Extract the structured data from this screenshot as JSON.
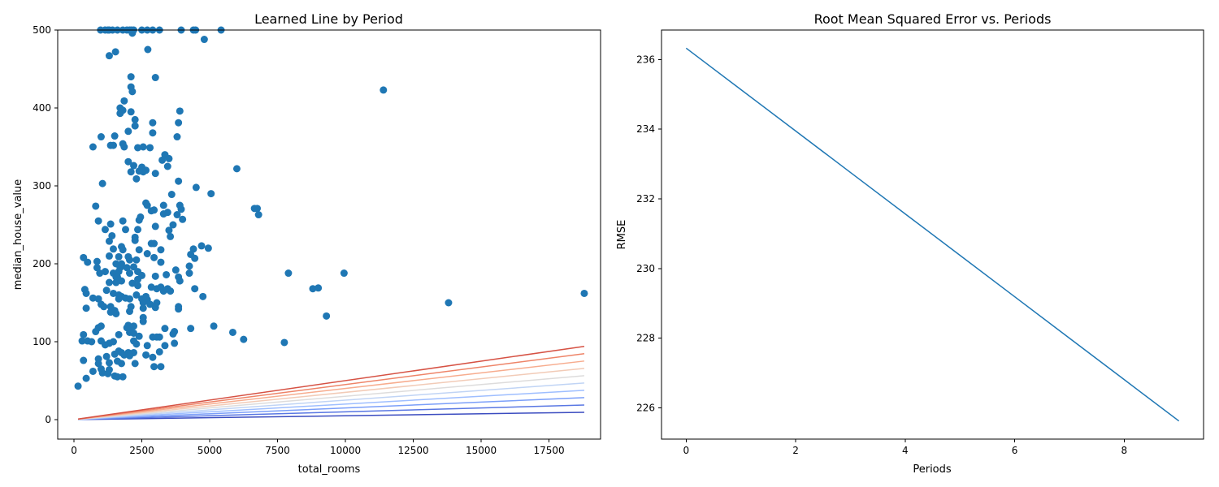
{
  "chart_data": [
    {
      "type": "scatter",
      "title": "Learned Line by Period",
      "xlabel": "total_rooms",
      "ylabel": "median_house_value",
      "xlim": [
        -600,
        19400
      ],
      "ylim": [
        -25,
        500
      ],
      "xticks": [
        0,
        2500,
        5000,
        7500,
        10000,
        12500,
        15000,
        17500
      ],
      "yticks": [
        0,
        100,
        200,
        300,
        400,
        500
      ],
      "point_color": "#1f77b4",
      "points": [
        [
          980,
          500
        ],
        [
          1150,
          500
        ],
        [
          1250,
          500
        ],
        [
          1300,
          500
        ],
        [
          1420,
          500
        ],
        [
          1600,
          500
        ],
        [
          1800,
          500
        ],
        [
          1950,
          500
        ],
        [
          2050,
          500
        ],
        [
          2120,
          500
        ],
        [
          2200,
          500
        ],
        [
          2500,
          500
        ],
        [
          2700,
          500
        ],
        [
          2900,
          500
        ],
        [
          3150,
          500
        ],
        [
          3950,
          500
        ],
        [
          4400,
          500
        ],
        [
          4480,
          500
        ],
        [
          5420,
          500
        ],
        [
          2150,
          496
        ],
        [
          4800,
          488
        ],
        [
          1530,
          472
        ],
        [
          1300,
          467
        ],
        [
          2720,
          475
        ],
        [
          2100,
          440
        ],
        [
          3000,
          439
        ],
        [
          2100,
          427
        ],
        [
          2150,
          421
        ],
        [
          11400,
          423
        ],
        [
          1850,
          409
        ],
        [
          1700,
          400
        ],
        [
          1800,
          397
        ],
        [
          1700,
          393
        ],
        [
          2100,
          395
        ],
        [
          3900,
          396
        ],
        [
          2250,
          385
        ],
        [
          2250,
          377
        ],
        [
          1000,
          363
        ],
        [
          2000,
          370
        ],
        [
          2900,
          381
        ],
        [
          2900,
          368
        ],
        [
          3850,
          381
        ],
        [
          3800,
          363
        ],
        [
          1500,
          364
        ],
        [
          700,
          350
        ],
        [
          1350,
          352
        ],
        [
          1450,
          352
        ],
        [
          1850,
          350
        ],
        [
          1800,
          354
        ],
        [
          2350,
          349
        ],
        [
          2550,
          350
        ],
        [
          2800,
          349
        ],
        [
          3350,
          340
        ],
        [
          3250,
          333
        ],
        [
          3500,
          335
        ],
        [
          3450,
          325
        ],
        [
          2000,
          331
        ],
        [
          2200,
          326
        ],
        [
          2500,
          324
        ],
        [
          2550,
          318
        ],
        [
          2650,
          320
        ],
        [
          3000,
          316
        ],
        [
          2100,
          318
        ],
        [
          2400,
          319
        ],
        [
          6000,
          322
        ],
        [
          2300,
          309
        ],
        [
          3850,
          306
        ],
        [
          1050,
          303
        ],
        [
          4500,
          298
        ],
        [
          5050,
          290
        ],
        [
          3600,
          289
        ],
        [
          800,
          274
        ],
        [
          2650,
          278
        ],
        [
          2700,
          275
        ],
        [
          2850,
          268
        ],
        [
          2950,
          269
        ],
        [
          3300,
          275
        ],
        [
          3450,
          266
        ],
        [
          3300,
          264
        ],
        [
          3800,
          263
        ],
        [
          3900,
          275
        ],
        [
          3950,
          270
        ],
        [
          6650,
          271
        ],
        [
          6750,
          271
        ],
        [
          6800,
          263
        ],
        [
          900,
          255
        ],
        [
          1800,
          255
        ],
        [
          2450,
          260
        ],
        [
          2400,
          256
        ],
        [
          3650,
          250
        ],
        [
          3000,
          248
        ],
        [
          4000,
          257
        ],
        [
          1350,
          251
        ],
        [
          1150,
          244
        ],
        [
          1900,
          244
        ],
        [
          2350,
          244
        ],
        [
          3500,
          243
        ],
        [
          3550,
          235
        ],
        [
          1400,
          236
        ],
        [
          1300,
          229
        ],
        [
          2250,
          234
        ],
        [
          2250,
          230
        ],
        [
          2850,
          226
        ],
        [
          2950,
          226
        ],
        [
          3200,
          218
        ],
        [
          4400,
          219
        ],
        [
          4700,
          223
        ],
        [
          4950,
          220
        ],
        [
          1450,
          219
        ],
        [
          1750,
          222
        ],
        [
          1800,
          218
        ],
        [
          2400,
          218
        ],
        [
          2700,
          213
        ],
        [
          4300,
          212
        ],
        [
          4450,
          207
        ],
        [
          350,
          208
        ],
        [
          500,
          202
        ],
        [
          850,
          203
        ],
        [
          1300,
          210
        ],
        [
          1650,
          209
        ],
        [
          2000,
          209
        ],
        [
          2050,
          205
        ],
        [
          2300,
          205
        ],
        [
          2950,
          208
        ],
        [
          3200,
          202
        ],
        [
          1550,
          200
        ],
        [
          1750,
          200
        ],
        [
          1950,
          195
        ],
        [
          2200,
          196
        ],
        [
          2350,
          190
        ],
        [
          4250,
          197
        ],
        [
          850,
          195
        ],
        [
          950,
          188
        ],
        [
          1150,
          190
        ],
        [
          1450,
          188
        ],
        [
          1550,
          183
        ],
        [
          1650,
          190
        ],
        [
          1700,
          195
        ],
        [
          2050,
          188
        ],
        [
          2500,
          185
        ],
        [
          3000,
          184
        ],
        [
          3400,
          186
        ],
        [
          3750,
          192
        ],
        [
          3850,
          183
        ],
        [
          3900,
          178
        ],
        [
          4250,
          188
        ],
        [
          7900,
          188
        ],
        [
          9950,
          188
        ],
        [
          1300,
          176
        ],
        [
          1550,
          176
        ],
        [
          1600,
          183
        ],
        [
          1750,
          178
        ],
        [
          2150,
          175
        ],
        [
          2350,
          180
        ],
        [
          2350,
          172
        ],
        [
          2850,
          170
        ],
        [
          3050,
          168
        ],
        [
          3200,
          170
        ],
        [
          3300,
          165
        ],
        [
          3450,
          168
        ],
        [
          3550,
          165
        ],
        [
          4450,
          168
        ],
        [
          8800,
          168
        ],
        [
          9000,
          169
        ],
        [
          18800,
          162
        ],
        [
          400,
          167
        ],
        [
          450,
          162
        ],
        [
          1200,
          166
        ],
        [
          1450,
          162
        ],
        [
          1650,
          160
        ],
        [
          1750,
          158
        ],
        [
          1900,
          156
        ],
        [
          2050,
          155
        ],
        [
          2300,
          160
        ],
        [
          2500,
          155
        ],
        [
          2650,
          158
        ],
        [
          2700,
          154
        ],
        [
          4750,
          158
        ],
        [
          700,
          156
        ],
        [
          900,
          155
        ],
        [
          1000,
          148
        ],
        [
          1100,
          145
        ],
        [
          1350,
          145
        ],
        [
          1500,
          140
        ],
        [
          1650,
          155
        ],
        [
          2100,
          145
        ],
        [
          2550,
          150
        ],
        [
          2800,
          148
        ],
        [
          3000,
          144
        ],
        [
          3050,
          150
        ],
        [
          3850,
          145
        ],
        [
          3850,
          142
        ],
        [
          13800,
          150
        ],
        [
          450,
          143
        ],
        [
          1350,
          138
        ],
        [
          1550,
          136
        ],
        [
          2050,
          139
        ],
        [
          2550,
          143
        ],
        [
          2550,
          131
        ],
        [
          2550,
          126
        ],
        [
          9300,
          133
        ],
        [
          5150,
          120
        ],
        [
          5850,
          112
        ],
        [
          4300,
          117
        ],
        [
          3350,
          117
        ],
        [
          2200,
          120
        ],
        [
          2100,
          115
        ],
        [
          2000,
          121
        ],
        [
          1950,
          118
        ],
        [
          1000,
          120
        ],
        [
          900,
          118
        ],
        [
          800,
          113
        ],
        [
          350,
          109
        ],
        [
          1650,
          109
        ],
        [
          2050,
          112
        ],
        [
          2200,
          111
        ],
        [
          3150,
          106
        ],
        [
          2400,
          107
        ],
        [
          1450,
          100
        ],
        [
          1300,
          98
        ],
        [
          1150,
          96
        ],
        [
          1000,
          101
        ],
        [
          500,
          101
        ],
        [
          300,
          101
        ],
        [
          650,
          100
        ],
        [
          6250,
          103
        ],
        [
          7750,
          99
        ],
        [
          3700,
          113
        ],
        [
          3650,
          110
        ],
        [
          3700,
          98
        ],
        [
          2200,
          101
        ],
        [
          2300,
          97
        ],
        [
          2700,
          95
        ],
        [
          3050,
          106
        ],
        [
          2900,
          106
        ],
        [
          3350,
          95
        ],
        [
          3150,
          87
        ],
        [
          2000,
          86
        ],
        [
          2200,
          86
        ],
        [
          1650,
          88
        ],
        [
          1500,
          84
        ],
        [
          1750,
          86
        ],
        [
          1850,
          83
        ],
        [
          2050,
          82
        ],
        [
          2650,
          83
        ],
        [
          2900,
          80
        ],
        [
          900,
          78
        ],
        [
          1200,
          81
        ],
        [
          900,
          72
        ],
        [
          1300,
          73
        ],
        [
          1600,
          75
        ],
        [
          1750,
          72
        ],
        [
          2250,
          72
        ],
        [
          2950,
          68
        ],
        [
          3200,
          68
        ],
        [
          1000,
          65
        ],
        [
          700,
          62
        ],
        [
          1300,
          64
        ],
        [
          1500,
          56
        ],
        [
          1600,
          55
        ],
        [
          1800,
          55
        ],
        [
          1250,
          59
        ],
        [
          1050,
          60
        ],
        [
          450,
          53
        ],
        [
          350,
          76
        ],
        [
          150,
          43
        ]
      ],
      "series": [
        {
          "color": "#3b4cc0",
          "x": [
            150,
            18800
          ],
          "y": [
            0.08,
            9.4
          ]
        },
        {
          "color": "#5977e3",
          "x": [
            150,
            18800
          ],
          "y": [
            0.16,
            18.8
          ]
        },
        {
          "color": "#7b9ff9",
          "x": [
            150,
            18800
          ],
          "y": [
            0.24,
            28.2
          ]
        },
        {
          "color": "#9ebeff",
          "x": [
            150,
            18800
          ],
          "y": [
            0.32,
            37.6
          ]
        },
        {
          "color": "#c0d4f5",
          "x": [
            150,
            18800
          ],
          "y": [
            0.4,
            47.0
          ]
        },
        {
          "color": "#dddcdc",
          "x": [
            150,
            18800
          ],
          "y": [
            0.48,
            56.4
          ]
        },
        {
          "color": "#f2cbb7",
          "x": [
            150,
            18800
          ],
          "y": [
            0.56,
            65.8
          ]
        },
        {
          "color": "#f7ac8e",
          "x": [
            150,
            18800
          ],
          "y": [
            0.64,
            75.2
          ]
        },
        {
          "color": "#ee8468",
          "x": [
            150,
            18800
          ],
          "y": [
            0.72,
            84.6
          ]
        },
        {
          "color": "#d65244",
          "x": [
            150,
            18800
          ],
          "y": [
            0.8,
            94.0
          ]
        }
      ]
    },
    {
      "type": "line",
      "title": "Root Mean Squared Error vs. Periods",
      "xlabel": "Periods",
      "ylabel": "RMSE",
      "xlim": [
        -0.45,
        9.45
      ],
      "ylim": [
        225.1,
        236.85
      ],
      "xticks": [
        0,
        2,
        4,
        6,
        8
      ],
      "yticks": [
        226,
        228,
        230,
        232,
        234,
        236
      ],
      "series": [
        {
          "color": "#1f77b4",
          "x": [
            0,
            1,
            2,
            3,
            4,
            5,
            6,
            7,
            8,
            9
          ],
          "y": [
            236.33,
            235.14,
            233.95,
            232.76,
            231.57,
            230.38,
            229.19,
            228.0,
            226.81,
            225.62
          ]
        }
      ]
    }
  ]
}
